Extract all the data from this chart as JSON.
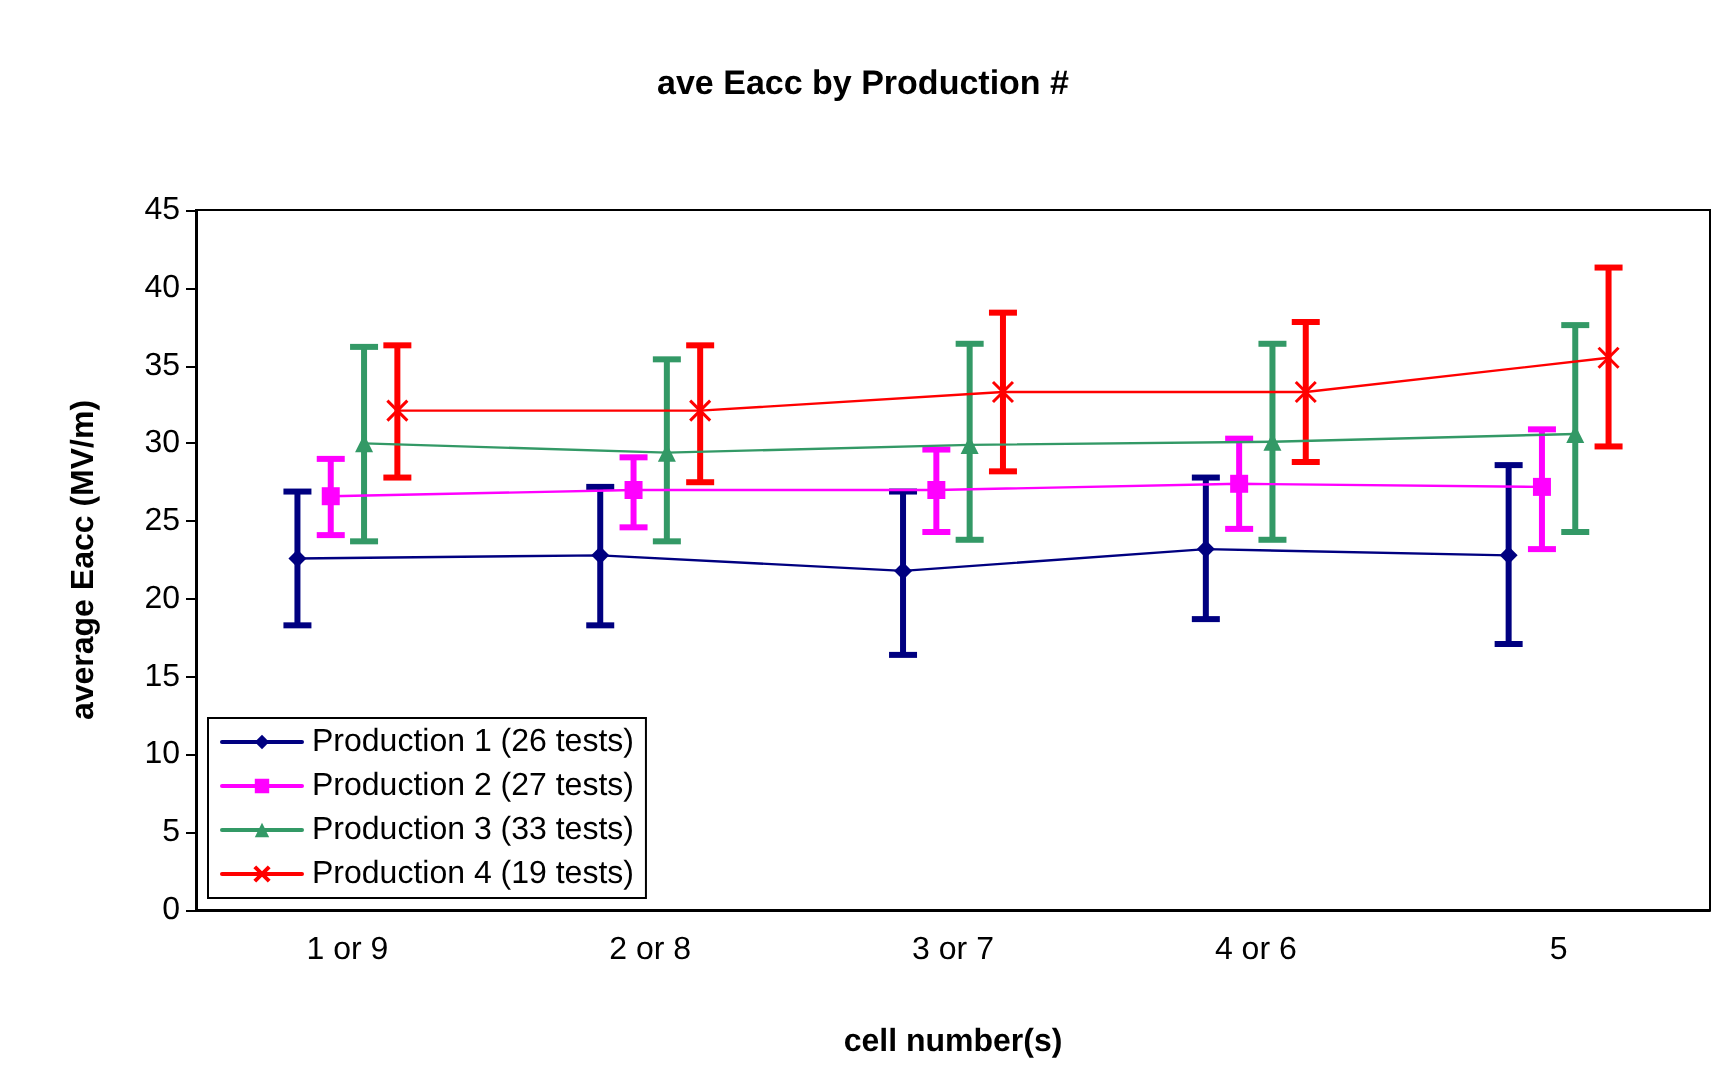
{
  "chart_data": {
    "type": "line",
    "title": "ave Eacc by Production #",
    "xlabel": "cell number(s)",
    "ylabel": "average Eacc (MV/m)",
    "categories": [
      "1 or 9",
      "2 or 8",
      "3 or 7",
      "4 or 6",
      "5"
    ],
    "ylim": [
      0,
      45
    ],
    "yticks": [
      0,
      5,
      10,
      15,
      20,
      25,
      30,
      35,
      40,
      45
    ],
    "grid": false,
    "legend": "bottom left",
    "series": [
      {
        "name": "Production 1 (26 tests)",
        "color": "#000080",
        "marker": "diamond",
        "values": [
          22.6,
          22.8,
          21.8,
          23.2,
          22.8
        ],
        "errors": [
          [
            18.3,
            26.9
          ],
          [
            18.3,
            27.2
          ],
          [
            16.4,
            26.9
          ],
          [
            18.7,
            27.8
          ],
          [
            17.1,
            28.6
          ]
        ]
      },
      {
        "name": "Production 2 (27 tests)",
        "color": "#ff00ff",
        "marker": "square",
        "values": [
          26.6,
          27.0,
          27.0,
          27.4,
          27.2
        ],
        "errors": [
          [
            24.1,
            29.0
          ],
          [
            24.6,
            29.1
          ],
          [
            24.3,
            29.6
          ],
          [
            24.5,
            30.3
          ],
          [
            23.2,
            30.9
          ]
        ]
      },
      {
        "name": "Production 3 (33 tests)",
        "color": "#339966",
        "marker": "triangle",
        "values": [
          30.0,
          29.4,
          29.9,
          30.1,
          30.6
        ],
        "errors": [
          [
            23.7,
            36.2
          ],
          [
            23.7,
            35.4
          ],
          [
            23.8,
            36.4
          ],
          [
            23.8,
            36.4
          ],
          [
            24.3,
            37.6
          ]
        ]
      },
      {
        "name": "Production 4 (19 tests)",
        "color": "#ff0000",
        "marker": "cross",
        "values": [
          32.1,
          32.1,
          33.3,
          33.3,
          35.5
        ],
        "errors": [
          [
            27.8,
            36.3
          ],
          [
            27.5,
            36.3
          ],
          [
            28.2,
            38.4
          ],
          [
            28.8,
            37.8
          ],
          [
            29.8,
            41.3
          ]
        ]
      }
    ]
  }
}
